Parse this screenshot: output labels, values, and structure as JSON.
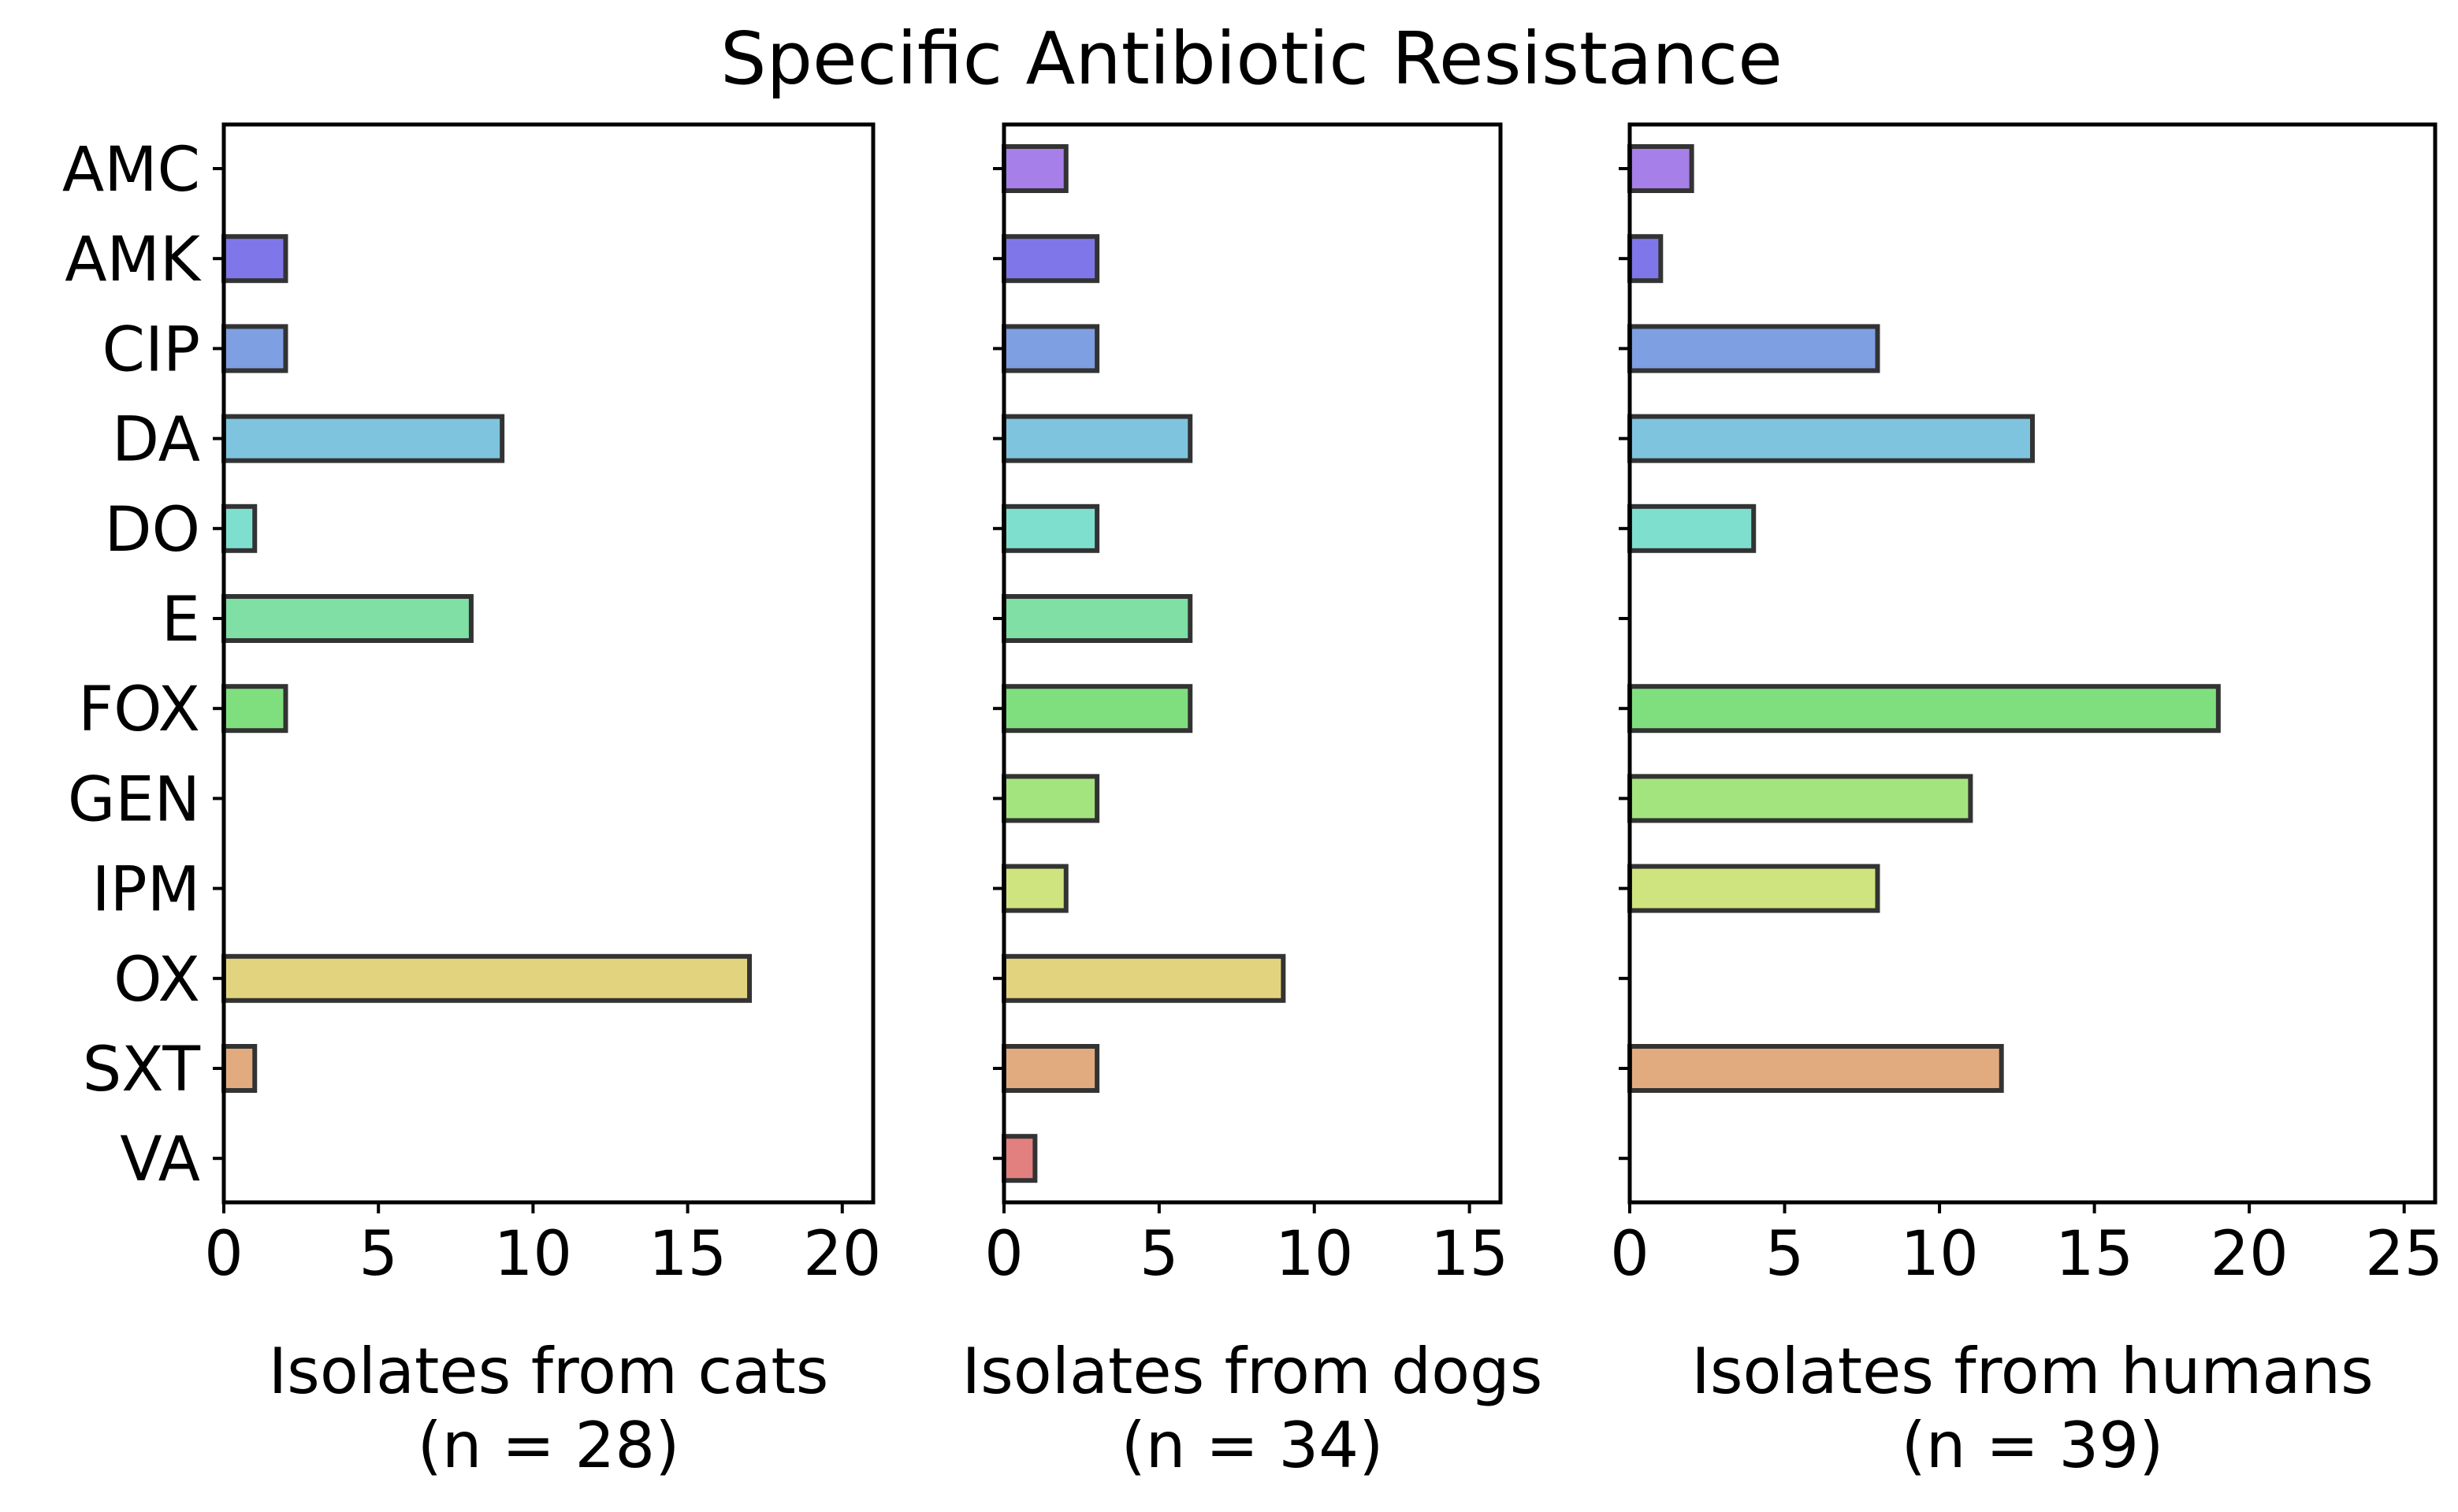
{
  "chart_data": {
    "type": "bar",
    "orientation": "horizontal",
    "title": "Specific Antibiotic Resistance",
    "categories": [
      "AMC",
      "AMK",
      "CIP",
      "DA",
      "DO",
      "E",
      "FOX",
      "GEN",
      "IPM",
      "OX",
      "SXT",
      "VA"
    ],
    "category_colors": [
      "#a77fe9",
      "#7f77e9",
      "#7f9fe3",
      "#7fc4df",
      "#7fdfcf",
      "#7fdfa4",
      "#7fdf7f",
      "#a4e47f",
      "#cfe47f",
      "#e2d47f",
      "#e2ab7f",
      "#e28080"
    ],
    "panels": [
      {
        "xlabel_line1": "Isolates from cats",
        "xlabel_line2": "(n = 28)",
        "values": [
          0,
          2,
          2,
          9,
          1,
          8,
          2,
          0,
          0,
          17,
          1,
          0
        ],
        "xlim": [
          0,
          21
        ],
        "xticks": [
          0,
          5,
          10,
          15,
          20
        ]
      },
      {
        "xlabel_line1": "Isolates from dogs",
        "xlabel_line2": "(n = 34)",
        "values": [
          2,
          3,
          3,
          6,
          3,
          6,
          6,
          3,
          2,
          9,
          3,
          1
        ],
        "xlim": [
          0,
          16
        ],
        "xticks": [
          0,
          5,
          10,
          15
        ]
      },
      {
        "xlabel_line1": "Isolates from humans",
        "xlabel_line2": "(n = 39)",
        "values": [
          2,
          1,
          8,
          13,
          4,
          0,
          19,
          11,
          8,
          0,
          12,
          0
        ],
        "xlim": [
          0,
          26
        ],
        "xticks": [
          0,
          5,
          10,
          15,
          20,
          25
        ]
      }
    ]
  }
}
